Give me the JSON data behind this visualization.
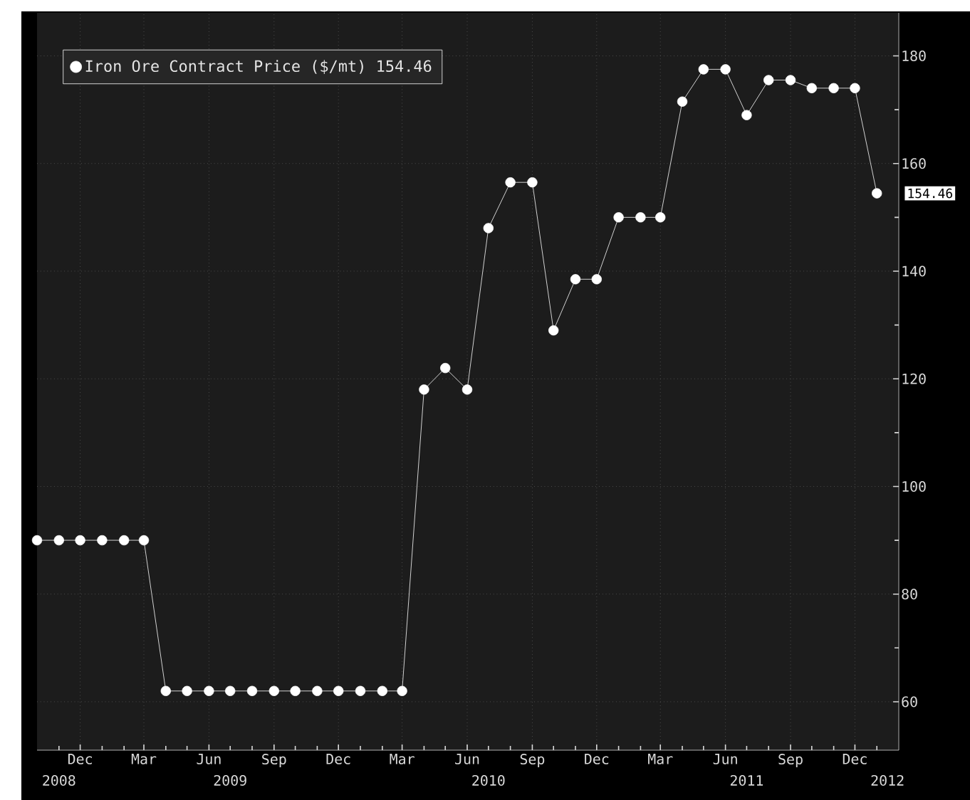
{
  "chart_data": {
    "type": "line",
    "x": [
      "2008-10",
      "2008-11",
      "2008-12",
      "2009-01",
      "2009-02",
      "2009-03",
      "2009-04",
      "2009-05",
      "2009-06",
      "2009-07",
      "2009-08",
      "2009-09",
      "2009-10",
      "2009-11",
      "2009-12",
      "2010-01",
      "2010-02",
      "2010-03",
      "2010-04",
      "2010-05",
      "2010-06",
      "2010-07",
      "2010-08",
      "2010-09",
      "2010-10",
      "2010-11",
      "2010-12",
      "2011-01",
      "2011-02",
      "2011-03",
      "2011-04",
      "2011-05",
      "2011-06",
      "2011-07",
      "2011-08",
      "2011-09",
      "2011-10",
      "2011-11",
      "2011-12",
      "2012-01"
    ],
    "series": [
      {
        "name": "Iron Ore Contract Price ($/mt) 154.46",
        "color": "#ffffff",
        "values": [
          90,
          90,
          90,
          90,
          90,
          90,
          62,
          62,
          62,
          62,
          62,
          62,
          62,
          62,
          62,
          62,
          62,
          62,
          118,
          122,
          118,
          148,
          156.5,
          156.5,
          129,
          138.5,
          138.5,
          150,
          150,
          150,
          171.5,
          177.5,
          177.5,
          169,
          175.5,
          175.5,
          174,
          174,
          174,
          154.46
        ]
      }
    ],
    "xlim": [
      "2008-10-01",
      "2012-02-01"
    ],
    "xticks": [
      {
        "value": "2008-11",
        "label": null
      },
      {
        "value": "2008-12",
        "label": "Dec"
      },
      {
        "value": "2009-01",
        "label": null
      },
      {
        "value": "2009-02",
        "label": null
      },
      {
        "value": "2009-03",
        "label": "Mar"
      },
      {
        "value": "2009-04",
        "label": null
      },
      {
        "value": "2009-05",
        "label": null
      },
      {
        "value": "2009-06",
        "label": "Jun"
      },
      {
        "value": "2009-07",
        "label": null
      },
      {
        "value": "2009-08",
        "label": null
      },
      {
        "value": "2009-09",
        "label": "Sep"
      },
      {
        "value": "2009-10",
        "label": null
      },
      {
        "value": "2009-11",
        "label": null
      },
      {
        "value": "2009-12",
        "label": "Dec"
      },
      {
        "value": "2010-01",
        "label": null
      },
      {
        "value": "2010-02",
        "label": null
      },
      {
        "value": "2010-03",
        "label": "Mar"
      },
      {
        "value": "2010-04",
        "label": null
      },
      {
        "value": "2010-05",
        "label": null
      },
      {
        "value": "2010-06",
        "label": "Jun"
      },
      {
        "value": "2010-07",
        "label": null
      },
      {
        "value": "2010-08",
        "label": null
      },
      {
        "value": "2010-09",
        "label": "Sep"
      },
      {
        "value": "2010-10",
        "label": null
      },
      {
        "value": "2010-11",
        "label": null
      },
      {
        "value": "2010-12",
        "label": "Dec"
      },
      {
        "value": "2011-01",
        "label": null
      },
      {
        "value": "2011-02",
        "label": null
      },
      {
        "value": "2011-03",
        "label": "Mar"
      },
      {
        "value": "2011-04",
        "label": null
      },
      {
        "value": "2011-05",
        "label": null
      },
      {
        "value": "2011-06",
        "label": "Jun"
      },
      {
        "value": "2011-07",
        "label": null
      },
      {
        "value": "2011-08",
        "label": null
      },
      {
        "value": "2011-09",
        "label": "Sep"
      },
      {
        "value": "2011-10",
        "label": null
      },
      {
        "value": "2011-11",
        "label": null
      },
      {
        "value": "2011-12",
        "label": "Dec"
      },
      {
        "value": "2012-01",
        "label": null
      }
    ],
    "x2lim": [
      "2008-10-01",
      "2012-02-01"
    ],
    "x2ticks": [
      {
        "value": "2008-11-01",
        "label": "2008"
      },
      {
        "value": "2009-07-01",
        "label": "2009"
      },
      {
        "value": "2010-07-01",
        "label": "2010"
      },
      {
        "value": "2011-07-01",
        "label": "2011"
      },
      {
        "value": "2012-01-16",
        "label": "2012"
      }
    ],
    "ylim": [
      51,
      188
    ],
    "yticks": [
      60,
      {
        "value": 70,
        "label": null
      },
      80,
      {
        "value": 90,
        "label": null
      },
      100,
      {
        "value": 110,
        "label": null
      },
      120,
      {
        "value": 130,
        "label": null
      },
      140,
      {
        "value": 150,
        "label": null
      },
      160,
      {
        "value": 170,
        "label": null
      },
      180
    ],
    "annotations": [
      {
        "text": "154.46",
        "x": "2012-01",
        "y": 154.46
      }
    ],
    "grid": true,
    "legend": "top left",
    "marker": "circle",
    "line_style": "solid"
  }
}
